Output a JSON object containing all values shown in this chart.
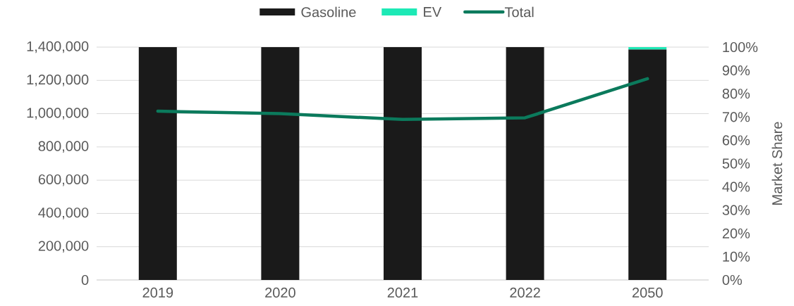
{
  "chart_data": {
    "type": "bar",
    "stacked": true,
    "categories": [
      "2019",
      "2020",
      "2021",
      "2022",
      "2050"
    ],
    "series": [
      {
        "name": "Gasoline",
        "axis": "y2",
        "color": "#1a1a1a",
        "values": [
          100,
          100,
          100,
          100,
          99
        ]
      },
      {
        "name": "EV",
        "axis": "y2",
        "color": "#1de9b6",
        "values": [
          null,
          null,
          null,
          null,
          1
        ]
      },
      {
        "name": "Total",
        "type": "line",
        "axis": "y",
        "color": "#0b7a5c",
        "values": [
          1015000,
          1000000,
          965000,
          975000,
          1210000
        ]
      }
    ],
    "ylim": [
      0,
      1400000
    ],
    "yticks": [
      0,
      {
        "value": 200000,
        "label": "200,000"
      },
      {
        "value": 400000,
        "label": "400,000"
      },
      {
        "value": 600000,
        "label": "600,000"
      },
      {
        "value": 800000,
        "label": "800,000"
      },
      {
        "value": 1000000,
        "label": "1,000,000"
      },
      {
        "value": 1200000,
        "label": "1,200,000"
      },
      {
        "value": 1400000,
        "label": "1,400,000"
      }
    ],
    "y2lim": [
      0,
      100
    ],
    "y2ticks": [
      {
        "value": 0,
        "label": "0%"
      },
      {
        "value": 10,
        "label": "10%"
      },
      {
        "value": 20,
        "label": "20%"
      },
      {
        "value": 30,
        "label": "30%"
      },
      {
        "value": 40,
        "label": "40%"
      },
      {
        "value": 50,
        "label": "50%"
      },
      {
        "value": 60,
        "label": "60%"
      },
      {
        "value": 70,
        "label": "70%"
      },
      {
        "value": 80,
        "label": "80%"
      },
      {
        "value": 90,
        "label": "90%"
      },
      {
        "value": 100,
        "label": "100%"
      }
    ],
    "y2label": "Market Share",
    "grid": "y",
    "legend": "top"
  }
}
